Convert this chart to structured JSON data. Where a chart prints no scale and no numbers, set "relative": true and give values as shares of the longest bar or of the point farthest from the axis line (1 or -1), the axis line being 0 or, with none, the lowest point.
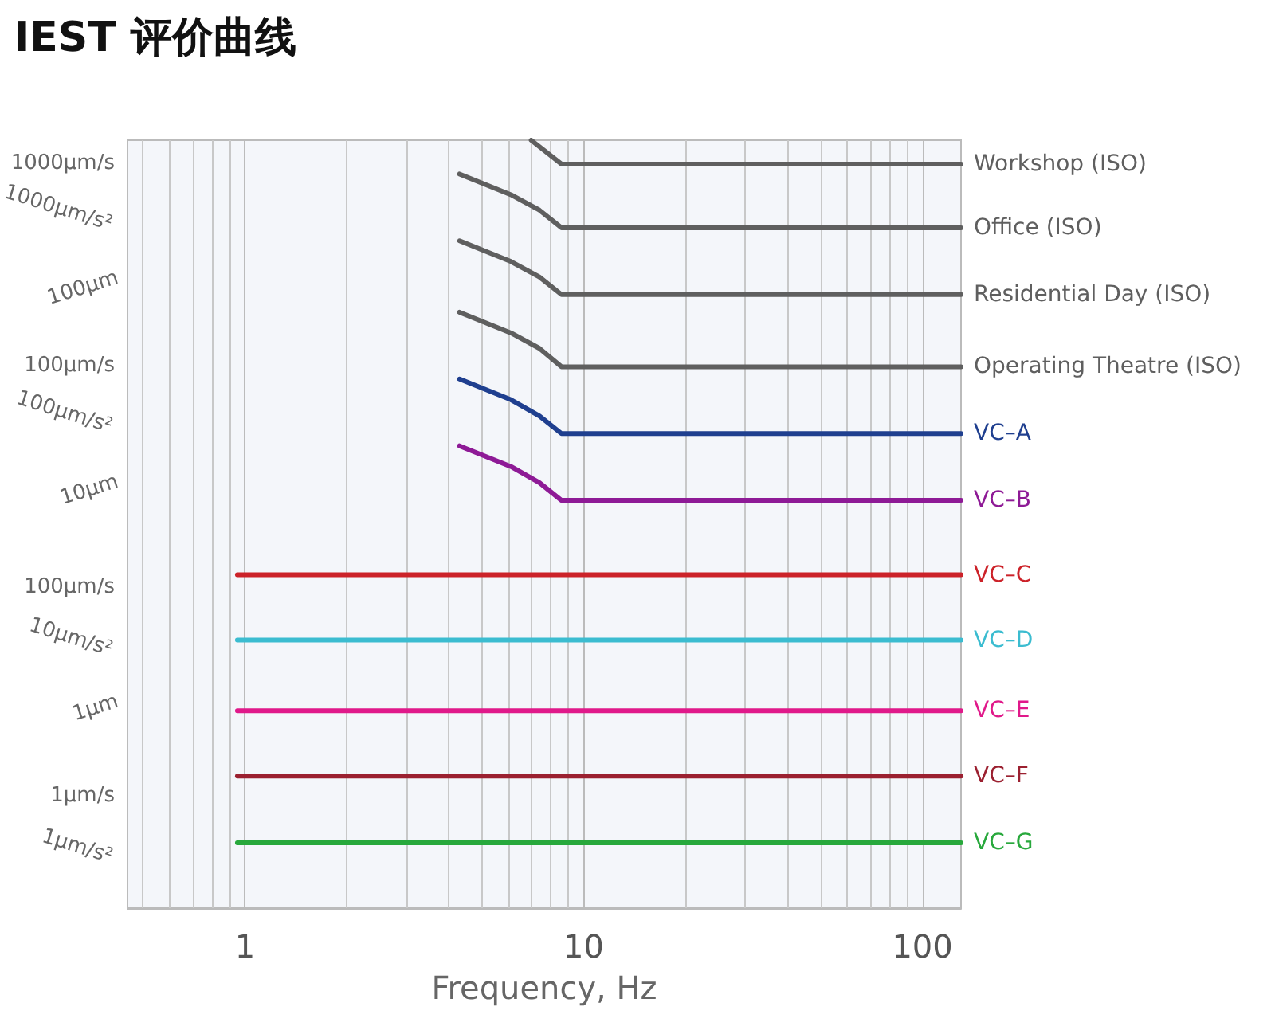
{
  "chart_data": {
    "type": "line",
    "title": "IEST 评价曲线",
    "xlabel": "Frequency, Hz",
    "relative": true,
    "log": "x",
    "grid": "x",
    "legend": false,
    "marker": "none",
    "line_style": "solid",
    "xlim": [
      0.45,
      130
    ],
    "xticks": [
      1,
      10,
      100
    ],
    "annotations": [
      "1000μm/s",
      "1000μm/s²",
      "100μm",
      "100μm/s",
      "100μm/s²",
      "10μm",
      "100μm/s",
      "10μm/s²",
      "1μm",
      "1μm/s",
      "1μm/s²"
    ],
    "series": [
      {
        "name": "Workshop (ISO)",
        "color": "#5f5f5f",
        "x": [
          7.0,
          8.6,
          130
        ],
        "values": [
          1.0,
          0.969,
          0.969
        ]
      },
      {
        "name": "Office (ISO)",
        "color": "#5f5f5f",
        "x": [
          4.3,
          6.1,
          7.4,
          8.6,
          130
        ],
        "values": [
          0.956,
          0.929,
          0.909,
          0.886,
          0.886
        ]
      },
      {
        "name": "Residential Day (ISO)",
        "color": "#5f5f5f",
        "x": [
          4.3,
          6.1,
          7.4,
          8.6,
          130
        ],
        "values": [
          0.869,
          0.842,
          0.822,
          0.799,
          0.799
        ]
      },
      {
        "name": "Operating Theatre (ISO)",
        "color": "#5f5f5f",
        "x": [
          4.3,
          6.1,
          7.4,
          8.6,
          130
        ],
        "values": [
          0.776,
          0.749,
          0.729,
          0.705,
          0.705
        ]
      },
      {
        "name": "VC–A",
        "color": "#1f3f8f",
        "x": [
          4.3,
          6.1,
          7.4,
          8.6,
          130
        ],
        "values": [
          0.689,
          0.662,
          0.641,
          0.618,
          0.618
        ]
      },
      {
        "name": "VC–B",
        "color": "#8e1a96",
        "x": [
          4.3,
          6.1,
          7.4,
          8.6,
          130
        ],
        "values": [
          0.602,
          0.575,
          0.554,
          0.531,
          0.531
        ]
      },
      {
        "name": "VC–C",
        "color": "#cc2229",
        "x": [
          0.95,
          130
        ],
        "values": [
          0.434,
          0.434
        ]
      },
      {
        "name": "VC–D",
        "color": "#3bbcd0",
        "x": [
          0.95,
          130
        ],
        "values": [
          0.349,
          0.349
        ]
      },
      {
        "name": "VC–E",
        "color": "#e0198a",
        "x": [
          0.95,
          130
        ],
        "values": [
          0.257,
          0.257
        ]
      },
      {
        "name": "VC–F",
        "color": "#9b2030",
        "x": [
          0.95,
          130
        ],
        "values": [
          0.172,
          0.172
        ]
      },
      {
        "name": "VC–G",
        "color": "#28a83c",
        "x": [
          0.95,
          130
        ],
        "values": [
          0.085,
          0.085
        ]
      }
    ]
  }
}
